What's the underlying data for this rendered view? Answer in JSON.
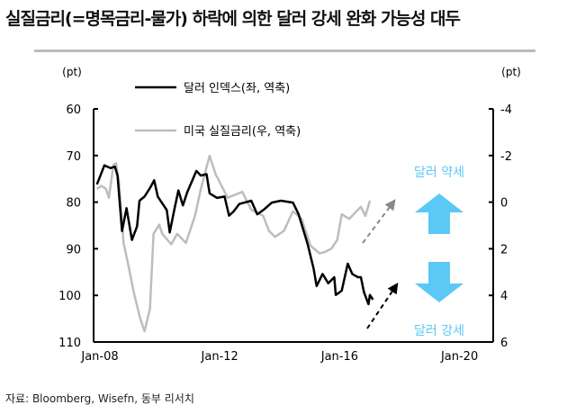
{
  "title": "실질금리(=명목금리-물가) 하락에 의한 달러 강세 완화 가능성 대두",
  "source": "자료: Bloomberg, Wisefn, 동부 리서치",
  "annotations": {
    "weak": "달러 약세",
    "strong": "달러 강세"
  },
  "colors": {
    "dollar": "#000000",
    "real_rate": "#bdbdbd",
    "arrow": "#5bc8f5"
  },
  "chart_data": {
    "type": "line",
    "title": "실질금리(=명목금리-물가) 하락에 의한 달러 강세 완화 가능성 대두",
    "xlabel": "",
    "x_ticks": [
      "Jan-08",
      "Jan-12",
      "Jan-16",
      "Jan-20"
    ],
    "xlim": [
      2008,
      2020
    ],
    "y_left": {
      "label": "(pt)",
      "ticks": [
        "60",
        "70",
        "80",
        "90",
        "100",
        "110"
      ],
      "range": [
        60,
        110
      ],
      "inverted": true
    },
    "y_right": {
      "label": "(pt)",
      "ticks": [
        "-4",
        "-2",
        "0",
        "2",
        "4",
        "6"
      ],
      "range": [
        -4,
        6
      ],
      "inverted": true
    },
    "legend": "top-left",
    "series": [
      {
        "name": "달러 인덱스(좌, 역축)",
        "axis": "left",
        "x": [
          2007.9,
          2008.15,
          2008.35,
          2008.5,
          2008.59,
          2008.74,
          2008.89,
          2009.07,
          2009.24,
          2009.32,
          2009.49,
          2009.68,
          2009.81,
          2009.93,
          2010.23,
          2010.33,
          2010.48,
          2010.62,
          2010.77,
          2010.92,
          2011.22,
          2011.37,
          2011.56,
          2011.66,
          2011.91,
          2012.16,
          2012.31,
          2012.46,
          2012.65,
          2013.05,
          2013.25,
          2013.45,
          2013.74,
          2014.04,
          2014.44,
          2014.63,
          2014.93,
          2015.13,
          2015.23,
          2015.43,
          2015.62,
          2015.82,
          2015.87,
          2016.07,
          2016.27,
          2016.42,
          2016.61,
          2016.71,
          2016.81,
          2016.96,
          2017.01,
          2017.11
        ],
        "y": [
          76.2,
          72.1,
          72.7,
          72.4,
          74.3,
          86.2,
          81.3,
          88.1,
          85.2,
          79.7,
          78.8,
          76.9,
          75.3,
          78.8,
          81.7,
          86.5,
          81.7,
          77.5,
          80.7,
          77.8,
          73.3,
          74.3,
          74.0,
          78.1,
          79.1,
          78.8,
          82.9,
          82.0,
          80.4,
          79.7,
          82.6,
          81.7,
          80.1,
          79.7,
          80.1,
          82.6,
          89.0,
          94.2,
          98.0,
          95.4,
          97.4,
          96.1,
          99.9,
          99.0,
          93.2,
          95.4,
          96.1,
          96.1,
          99.3,
          101.9,
          99.9,
          100.9
        ]
      },
      {
        "name": "미국 실질금리(우, 역축)",
        "axis": "right",
        "x": [
          2007.9,
          2008.05,
          2008.2,
          2008.3,
          2008.45,
          2008.54,
          2008.64,
          2008.79,
          2008.94,
          2009.14,
          2009.34,
          2009.49,
          2009.67,
          2009.79,
          2009.98,
          2010.08,
          2010.38,
          2010.58,
          2010.87,
          2011.17,
          2011.37,
          2011.66,
          2011.86,
          2012.26,
          2012.75,
          2013.05,
          2013.45,
          2013.64,
          2013.84,
          2014.14,
          2014.44,
          2014.73,
          2015.03,
          2015.33,
          2015.52,
          2015.72,
          2015.92,
          2016.07,
          2016.32,
          2016.51,
          2016.71,
          2016.86,
          2017.01
        ],
        "y": [
          -0.57,
          -0.7,
          -0.57,
          -0.19,
          -1.6,
          -1.67,
          -0.83,
          1.75,
          2.65,
          3.93,
          4.96,
          5.54,
          4.58,
          1.36,
          0.97,
          1.36,
          1.81,
          1.36,
          1.75,
          0.59,
          -0.57,
          -1.99,
          -1.21,
          -0.19,
          -0.44,
          0.33,
          0.59,
          1.23,
          1.49,
          1.23,
          0.39,
          0.72,
          1.87,
          2.2,
          2.13,
          2.0,
          1.62,
          0.52,
          0.72,
          0.46,
          0.2,
          0.59,
          -0.06
        ]
      }
    ]
  }
}
